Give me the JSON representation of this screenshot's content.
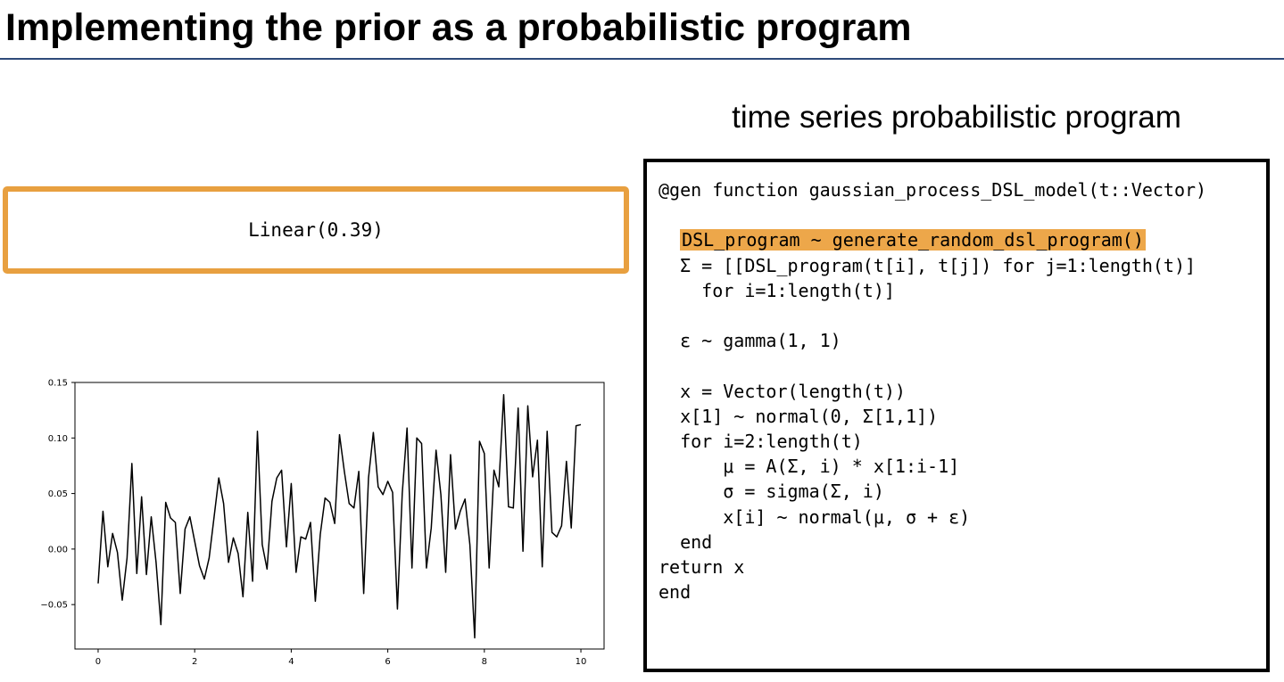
{
  "title": "Implementing the prior as a probabilistic program",
  "program_heading": "time series probabilistic program",
  "kernel_label": "Linear(0.39)",
  "colors": {
    "highlight": "#eda74a",
    "kernel_border": "#e8a040",
    "title_rule": "#2e4a7a"
  },
  "code": {
    "lines": [
      {
        "text": "@gen function gaussian_process_DSL_model(t::Vector)",
        "highlight": false
      },
      {
        "text": "",
        "highlight": false
      },
      {
        "text": "  DSL_program ~ generate_random_dsl_program()",
        "highlight": true
      },
      {
        "text": "  Σ = [[DSL_program(t[i], t[j]) for j=1:length(t)]",
        "highlight": false
      },
      {
        "text": "    for i=1:length(t)]",
        "highlight": false
      },
      {
        "text": "",
        "highlight": false
      },
      {
        "text": "  ε ~ gamma(1, 1)",
        "highlight": false
      },
      {
        "text": "",
        "highlight": false
      },
      {
        "text": "  x = Vector(length(t))",
        "highlight": false
      },
      {
        "text": "  x[1] ~ normal(0, Σ[1,1])",
        "highlight": false
      },
      {
        "text": "  for i=2:length(t)",
        "highlight": false
      },
      {
        "text": "      μ = A(Σ, i) * x[1:i-1]",
        "highlight": false
      },
      {
        "text": "      σ = sigma(Σ, i)",
        "highlight": false
      },
      {
        "text": "      x[i] ~ normal(μ, σ + ε)",
        "highlight": false
      },
      {
        "text": "  end",
        "highlight": false
      },
      {
        "text": "return x",
        "highlight": false
      },
      {
        "text": "end",
        "highlight": false
      }
    ]
  },
  "chart_data": {
    "type": "line",
    "title": "",
    "xlabel": "",
    "ylabel": "",
    "xlim": [
      -0.48,
      10.48
    ],
    "ylim": [
      -0.09,
      0.15
    ],
    "xticks": [
      0,
      2,
      4,
      6,
      8,
      10
    ],
    "xtick_labels": [
      "0",
      "2",
      "4",
      "6",
      "8",
      "10"
    ],
    "yticks": [
      -0.05,
      0.0,
      0.05,
      0.1,
      0.15
    ],
    "ytick_labels": [
      "−0.05",
      "0.00",
      "0.05",
      "0.10",
      "0.15"
    ],
    "grid": false,
    "line_color": "#000000",
    "series": [
      {
        "x": [
          0.0,
          0.1,
          0.2,
          0.3,
          0.4,
          0.5,
          0.6,
          0.7,
          0.8,
          0.9,
          1.0,
          1.1,
          1.2,
          1.3,
          1.4,
          1.5,
          1.6,
          1.7,
          1.8,
          1.9,
          2.0,
          2.1,
          2.2,
          2.3,
          2.4,
          2.5,
          2.6,
          2.7,
          2.8,
          2.9,
          3.0,
          3.1,
          3.2,
          3.3,
          3.4,
          3.5,
          3.6,
          3.7,
          3.8,
          3.9,
          4.0,
          4.1,
          4.2,
          4.3,
          4.4,
          4.5,
          4.6,
          4.7,
          4.8,
          4.9,
          5.0,
          5.1,
          5.2,
          5.3,
          5.4,
          5.5,
          5.6,
          5.7,
          5.8,
          5.9,
          6.0,
          6.1,
          6.2,
          6.3,
          6.4,
          6.5,
          6.6,
          6.7,
          6.8,
          6.9,
          7.0,
          7.1,
          7.2,
          7.3,
          7.4,
          7.5,
          7.6,
          7.7,
          7.8,
          7.9,
          8.0,
          8.1,
          8.2,
          8.3,
          8.4,
          8.5,
          8.6,
          8.7,
          8.8,
          8.9,
          9.0,
          9.1,
          9.2,
          9.3,
          9.4,
          9.5,
          9.6,
          9.7,
          9.8,
          9.9,
          10.0
        ],
        "y": [
          -0.031,
          0.034,
          -0.016,
          0.014,
          -0.003,
          -0.046,
          -0.008,
          0.077,
          -0.022,
          0.047,
          -0.023,
          0.029,
          -0.012,
          -0.068,
          0.042,
          0.028,
          0.024,
          -0.04,
          0.018,
          0.029,
          0.007,
          -0.015,
          -0.027,
          -0.008,
          0.028,
          0.064,
          0.041,
          -0.012,
          0.01,
          -0.004,
          -0.043,
          0.033,
          -0.029,
          0.106,
          0.004,
          -0.018,
          0.043,
          0.064,
          0.071,
          0.002,
          0.059,
          -0.021,
          0.011,
          0.009,
          0.024,
          -0.047,
          0.013,
          0.046,
          0.042,
          0.023,
          0.103,
          0.07,
          0.041,
          0.037,
          0.07,
          -0.04,
          0.064,
          0.105,
          0.056,
          0.049,
          0.061,
          0.051,
          -0.054,
          0.05,
          0.109,
          -0.017,
          0.1,
          0.095,
          -0.017,
          0.019,
          0.089,
          0.049,
          -0.021,
          0.085,
          0.018,
          0.034,
          0.045,
          0.004,
          -0.08,
          0.097,
          0.086,
          -0.017,
          0.071,
          0.056,
          0.139,
          0.038,
          0.037,
          0.127,
          -0.002,
          0.129,
          0.065,
          0.098,
          -0.016,
          0.106,
          0.015,
          0.011,
          0.021,
          0.079,
          0.019,
          0.111,
          0.112
        ]
      }
    ]
  }
}
